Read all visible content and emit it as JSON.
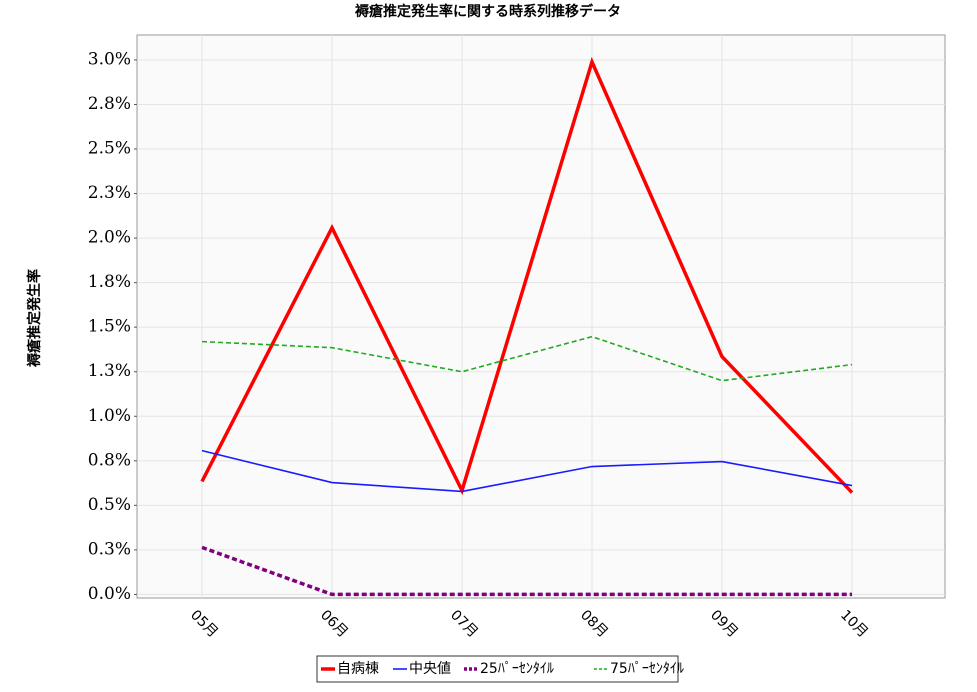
{
  "chart_data": {
    "type": "line",
    "title": "褥瘡推定発生率に関する時系列推移データ",
    "y_label": "褥瘡推定発生率",
    "categories": [
      "05月",
      "06月",
      "07月",
      "08月",
      "09月",
      "10月"
    ],
    "series": [
      {
        "name": "自病棟",
        "color": "#ff0000",
        "style": "solid",
        "weight": "bold",
        "values": [
          0.634,
          2.058,
          0.583,
          2.989,
          1.335,
          0.572
        ]
      },
      {
        "name": "中央値",
        "color": "#1a1aff",
        "style": "solid",
        "weight": "normal",
        "values": [
          0.807,
          0.628,
          0.578,
          0.718,
          0.746,
          0.611
        ]
      },
      {
        "name": "25ﾊﾟｰｾﾝﾀｲﾙ",
        "color": "#800080",
        "style": "dashed",
        "weight": "bold",
        "values": [
          0.264,
          0,
          0,
          0,
          0,
          0
        ]
      },
      {
        "name": "75ﾊﾟｰｾﾝﾀｲﾙ",
        "color": "#22aa22",
        "style": "dashed",
        "weight": "normal",
        "values": [
          1.419,
          1.385,
          1.25,
          1.447,
          1.2,
          1.29
        ]
      }
    ],
    "ylim": [
      -0.02,
      3.14
    ],
    "yticks": [
      {
        "value": 0,
        "label": "0.0%"
      },
      {
        "value": 0.25,
        "label": "0.3%"
      },
      {
        "value": 0.5,
        "label": "0.5%"
      },
      {
        "value": 0.75,
        "label": "0.8%"
      },
      {
        "value": 1,
        "label": "1.0%"
      },
      {
        "value": 1.25,
        "label": "1.3%"
      },
      {
        "value": 1.5,
        "label": "1.5%"
      },
      {
        "value": 1.75,
        "label": "1.8%"
      },
      {
        "value": 2,
        "label": "2.0%"
      },
      {
        "value": 2.25,
        "label": "2.3%"
      },
      {
        "value": 2.5,
        "label": "2.5%"
      },
      {
        "value": 2.75,
        "label": "2.8%"
      },
      {
        "value": 3,
        "label": "3.0%"
      }
    ],
    "grid": true,
    "legend": "bottom"
  }
}
